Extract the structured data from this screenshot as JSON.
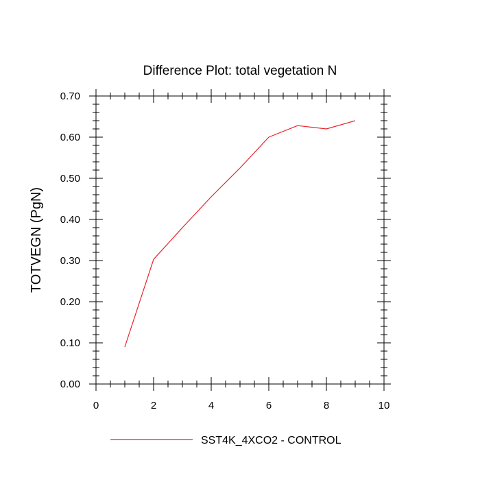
{
  "chart_data": {
    "type": "line",
    "title": "Difference Plot: total vegetation N",
    "xlabel": "",
    "ylabel": "TOTVEGN  (PgN)",
    "xlim": [
      0,
      10
    ],
    "ylim": [
      0,
      0.7
    ],
    "x_ticks": [
      0,
      2,
      4,
      6,
      8,
      10
    ],
    "x_tick_labels": [
      "0",
      "2",
      "4",
      "6",
      "8",
      "10"
    ],
    "y_ticks": [
      0,
      0.1,
      0.2,
      0.3,
      0.4,
      0.5,
      0.6,
      0.7
    ],
    "y_tick_labels": [
      "0.00",
      "0.10",
      "0.20",
      "0.30",
      "0.40",
      "0.50",
      "0.60",
      "0.70"
    ],
    "grid": false,
    "legend_position": "bottom",
    "series": [
      {
        "name": "SST4K_4XCO2 - CONTROL",
        "color": "#e8222a",
        "x": [
          1,
          2,
          3,
          4,
          5,
          6,
          7,
          8,
          9
        ],
        "y": [
          0.09,
          0.303,
          0.38,
          0.455,
          0.525,
          0.6,
          0.628,
          0.62,
          0.64
        ]
      }
    ]
  }
}
